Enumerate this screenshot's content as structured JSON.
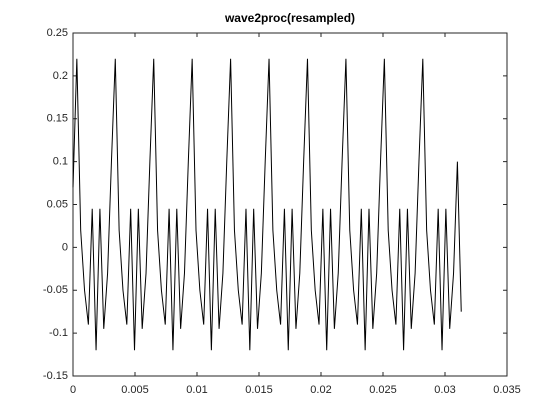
{
  "chart_data": {
    "type": "line",
    "title": "wave2proc(resampled)",
    "x": [
      0,
      0.00031,
      0.00062,
      0.00093,
      0.00124,
      0.00155,
      0.00186,
      0.00217,
      0.00248,
      0.00279,
      0.0031,
      0.00341,
      0.00372,
      0.00403,
      0.00434,
      0.00465,
      0.00496,
      0.00527,
      0.00558,
      0.00589,
      0.0062,
      0.00651,
      0.00682,
      0.00713,
      0.00744,
      0.00775,
      0.00806,
      0.00837,
      0.00868,
      0.00899,
      0.0093,
      0.00961,
      0.00992,
      0.01023,
      0.01054,
      0.01085,
      0.01116,
      0.01147,
      0.01178,
      0.01209,
      0.0124,
      0.01271,
      0.01302,
      0.01333,
      0.01364,
      0.01395,
      0.01426,
      0.01457,
      0.01488,
      0.01519,
      0.0155,
      0.01581,
      0.01612,
      0.01643,
      0.01674,
      0.01705,
      0.01736,
      0.01767,
      0.01798,
      0.01829,
      0.0186,
      0.01891,
      0.01922,
      0.01953,
      0.01984,
      0.02015,
      0.02046,
      0.02077,
      0.02108,
      0.02139,
      0.0217,
      0.02201,
      0.02232,
      0.02263,
      0.02294,
      0.02325,
      0.02356,
      0.02387,
      0.02418,
      0.02449,
      0.0248,
      0.02511,
      0.02542,
      0.02573,
      0.02604,
      0.02635,
      0.02666,
      0.02697,
      0.02728,
      0.02759,
      0.0279,
      0.02821,
      0.02852,
      0.02883,
      0.02914,
      0.02945,
      0.02976,
      0.03007,
      0.03038,
      0.03069,
      0.031,
      0.03131
    ],
    "series": [
      {
        "color": "#000000",
        "values": [
          0.07,
          0.22,
          0.02,
          -0.05,
          -0.09,
          0.045,
          -0.12,
          0.045,
          -0.095,
          -0.03,
          0.1,
          0.22,
          0.02,
          -0.05,
          -0.09,
          0.045,
          -0.12,
          0.045,
          -0.095,
          -0.03,
          0.1,
          0.22,
          0.02,
          -0.05,
          -0.09,
          0.045,
          -0.12,
          0.045,
          -0.095,
          -0.03,
          0.1,
          0.22,
          0.02,
          -0.05,
          -0.09,
          0.045,
          -0.12,
          0.045,
          -0.095,
          -0.03,
          0.1,
          0.22,
          0.02,
          -0.05,
          -0.09,
          0.045,
          -0.12,
          0.045,
          -0.095,
          -0.03,
          0.1,
          0.22,
          0.02,
          -0.05,
          -0.09,
          0.045,
          -0.12,
          0.045,
          -0.095,
          -0.03,
          0.1,
          0.22,
          0.02,
          -0.05,
          -0.09,
          0.045,
          -0.12,
          0.045,
          -0.095,
          -0.03,
          0.1,
          0.22,
          0.02,
          -0.05,
          -0.09,
          0.045,
          -0.12,
          0.045,
          -0.095,
          -0.03,
          0.1,
          0.22,
          0.02,
          -0.05,
          -0.09,
          0.045,
          -0.12,
          0.045,
          -0.095,
          -0.03,
          0.1,
          0.22,
          0.02,
          -0.05,
          -0.09,
          0.045,
          -0.12,
          0.045,
          -0.095,
          -0.03,
          0.1,
          -0.075
        ]
      }
    ],
    "xlim": [
      0,
      0.035
    ],
    "xticks": [
      0,
      0.005,
      0.01,
      0.015,
      0.02,
      0.025,
      0.03,
      0.035
    ],
    "ylim": [
      -0.15,
      0.25
    ],
    "yticks": [
      -0.15,
      -0.1,
      -0.05,
      0,
      0.05,
      0.1,
      0.15,
      0.2,
      0.25
    ],
    "grid": false
  }
}
